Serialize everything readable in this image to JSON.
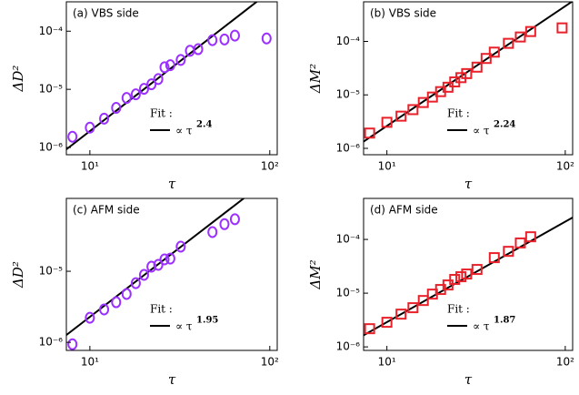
{
  "chart_data": [
    {
      "type": "scatter",
      "title": "(a) VBS side",
      "x_label": "τ",
      "y_label": "ΔD²",
      "log_x": true,
      "log_y": true,
      "x": [
        8,
        10,
        12,
        14,
        16,
        18,
        20,
        22,
        24,
        26,
        28,
        32,
        36,
        40,
        48,
        56,
        64,
        96
      ],
      "values": [
        1.53e-06,
        2.19e-06,
        3.13e-06,
        4.8e-06,
        7.1e-06,
        8.2e-06,
        1.02e-05,
        1.22e-05,
        1.5e-05,
        2.4e-05,
        2.6e-05,
        3.2e-05,
        4.6e-05,
        4.9e-05,
        7e-05,
        7.2e-05,
        8.4e-05,
        7.5e-05
      ],
      "color": "#9b30ff",
      "marker": "circle",
      "xlim": [
        7.4,
        110
      ],
      "xticks": [
        {
          "value": 10,
          "label": "10¹"
        },
        {
          "value": 100,
          "label": "10²"
        }
      ],
      "ylim": [
        7.5e-07,
        0.00032
      ],
      "yticks": [
        {
          "value": 1e-06,
          "label": "10⁻⁶"
        },
        {
          "value": 1e-05,
          "label": "10⁻⁵"
        },
        {
          "value": 0.0001,
          "label": "10⁻⁴"
        }
      ],
      "fit": {
        "label": "Fit :",
        "expression": "∝ τ",
        "exponent": 2.4,
        "prefactor": 7.6e-09,
        "color": "#000000"
      }
    },
    {
      "type": "scatter",
      "title": "(b) VBS side",
      "x_label": "τ",
      "y_label": "ΔM²",
      "log_x": true,
      "log_y": true,
      "x": [
        8,
        10,
        12,
        14,
        16,
        18,
        20,
        22,
        24,
        26,
        28,
        32,
        36,
        40,
        48,
        56,
        64,
        96
      ],
      "values": [
        1.93e-06,
        3.07e-06,
        4e-06,
        5.3e-06,
        7.2e-06,
        9.1e-06,
        1.15e-05,
        1.39e-05,
        1.75e-05,
        2.1e-05,
        2.5e-05,
        3.3e-05,
        4.8e-05,
        6.3e-05,
        9.2e-05,
        0.000121,
        0.000153,
        0.000179
      ],
      "color": "#e8212a",
      "marker": "square",
      "xlim": [
        7.4,
        110
      ],
      "xticks": [
        {
          "value": 10,
          "label": "10¹"
        },
        {
          "value": 100,
          "label": "10²"
        }
      ],
      "ylim": [
        7.6e-07,
        0.00055
      ],
      "yticks": [
        {
          "value": 1e-06,
          "label": "10⁻⁶"
        },
        {
          "value": 1e-05,
          "label": "10⁻⁵"
        },
        {
          "value": 0.0001,
          "label": "10⁻⁴"
        }
      ],
      "fit": {
        "label": "Fit :",
        "expression": "∝ τ",
        "exponent": 2.24,
        "prefactor": 1.51e-08,
        "color": "#000000"
      }
    },
    {
      "type": "scatter",
      "title": "(c) AFM side",
      "x_label": "τ",
      "y_label": "ΔD²",
      "log_x": true,
      "log_y": true,
      "x": [
        8,
        10,
        12,
        14,
        16,
        18,
        20,
        22,
        24,
        26,
        28,
        32,
        48,
        56,
        64
      ],
      "values": [
        9.4e-07,
        2.22e-06,
        2.9e-06,
        3.67e-06,
        4.8e-06,
        6.8e-06,
        8.9e-06,
        1.16e-05,
        1.23e-05,
        1.47e-05,
        1.51e-05,
        2.22e-05,
        3.56e-05,
        4.6e-05,
        5.4e-05
      ],
      "color": "#9b30ff",
      "marker": "circle",
      "xlim": [
        7.4,
        110
      ],
      "xticks": [
        {
          "value": 10,
          "label": "10¹"
        },
        {
          "value": 100,
          "label": "10²"
        }
      ],
      "ylim": [
        7.7e-07,
        0.000106
      ],
      "yticks": [
        {
          "value": 1e-06,
          "label": "10⁻⁶"
        },
        {
          "value": 1e-05,
          "label": "10⁻⁵"
        }
      ],
      "fit": {
        "label": "Fit :",
        "expression": "∝ τ",
        "exponent": 1.95,
        "prefactor": 2.56e-08,
        "color": "#000000"
      }
    },
    {
      "type": "scatter",
      "title": "(d) AFM side",
      "x_label": "τ",
      "y_label": "ΔM²",
      "log_x": true,
      "log_y": true,
      "x": [
        8,
        10,
        12,
        14,
        16,
        18,
        20,
        22,
        24,
        26,
        28,
        32,
        40,
        48,
        56,
        64
      ],
      "values": [
        2.18e-06,
        2.87e-06,
        4.07e-06,
        5.36e-06,
        7.3e-06,
        9.6e-06,
        1.17e-05,
        1.42e-05,
        1.8e-05,
        2.02e-05,
        2.27e-05,
        2.76e-05,
        4.58e-05,
        6e-05,
        8.6e-05,
        0.000112
      ],
      "color": "#e8212a",
      "marker": "square",
      "xlim": [
        7.4,
        110
      ],
      "xticks": [
        {
          "value": 10,
          "label": "10¹"
        },
        {
          "value": 100,
          "label": "10²"
        }
      ],
      "ylim": [
        8.6e-07,
        0.00058
      ],
      "yticks": [
        {
          "value": 1e-06,
          "label": "10⁻⁶"
        },
        {
          "value": 1e-05,
          "label": "10⁻⁵"
        },
        {
          "value": 0.0001,
          "label": "10⁻⁴"
        }
      ],
      "fit": {
        "label": "Fit :",
        "expression": "∝ τ",
        "exponent": 1.87,
        "prefactor": 3.9e-08,
        "color": "#000000"
      }
    }
  ]
}
